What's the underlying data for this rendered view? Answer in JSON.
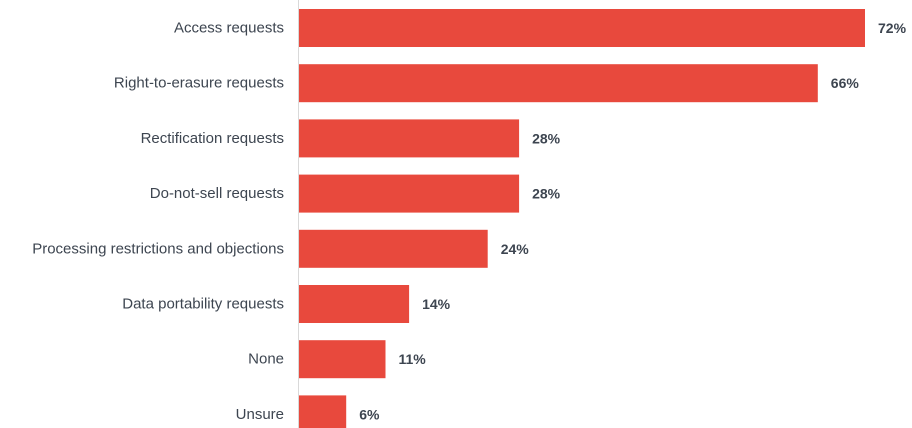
{
  "chart_data": {
    "type": "bar",
    "orientation": "horizontal",
    "categories": [
      "Access requests",
      "Right-to-erasure requests",
      "Rectification requests",
      "Do-not-sell requests",
      "Processing restrictions and objections",
      "Data portability requests",
      "None",
      "Unsure"
    ],
    "values": [
      72,
      66,
      28,
      28,
      24,
      14,
      11,
      6
    ],
    "value_labels": [
      "72%",
      "66%",
      "28%",
      "28%",
      "24%",
      "14%",
      "11%",
      "6%"
    ],
    "xlim": [
      0,
      72
    ],
    "grid": false,
    "bar_color": "#e8493d"
  }
}
